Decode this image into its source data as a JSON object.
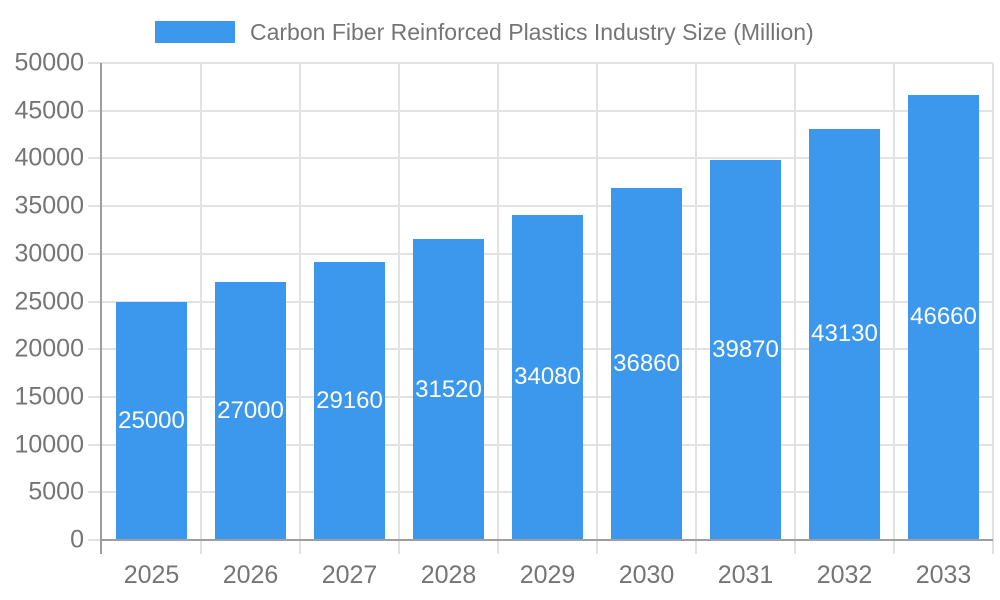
{
  "legend": {
    "position": "top",
    "swatch_color": "#3b98ec"
  },
  "chart_data": {
    "type": "bar",
    "title": "Carbon Fiber Reinforced Plastics Industry Size (Million)",
    "xlabel": "",
    "ylabel": "",
    "categories": [
      "2025",
      "2026",
      "2027",
      "2028",
      "2029",
      "2030",
      "2031",
      "2032",
      "2033"
    ],
    "values": [
      25000,
      27000,
      29160,
      31520,
      34080,
      36860,
      39870,
      43130,
      46660
    ],
    "bar_value_labels": [
      "25000",
      "27000",
      "29160",
      "31520",
      "34080",
      "36860",
      "39870",
      "43130",
      "46660"
    ],
    "ylim": [
      0,
      50000
    ],
    "y_step": 5000,
    "y_tick_labels": [
      "0",
      "5000",
      "10000",
      "15000",
      "20000",
      "25000",
      "30000",
      "35000",
      "40000",
      "45000",
      "50000"
    ],
    "grid": true,
    "legend_position": "top",
    "bar_color": "#3b98ec",
    "bar_label_color": "#ffffff",
    "axis_label_color": "#757575",
    "grid_color": "#e2e2e2",
    "axis_line_color": "#9e9e9e",
    "background_color": "#ffffff"
  }
}
